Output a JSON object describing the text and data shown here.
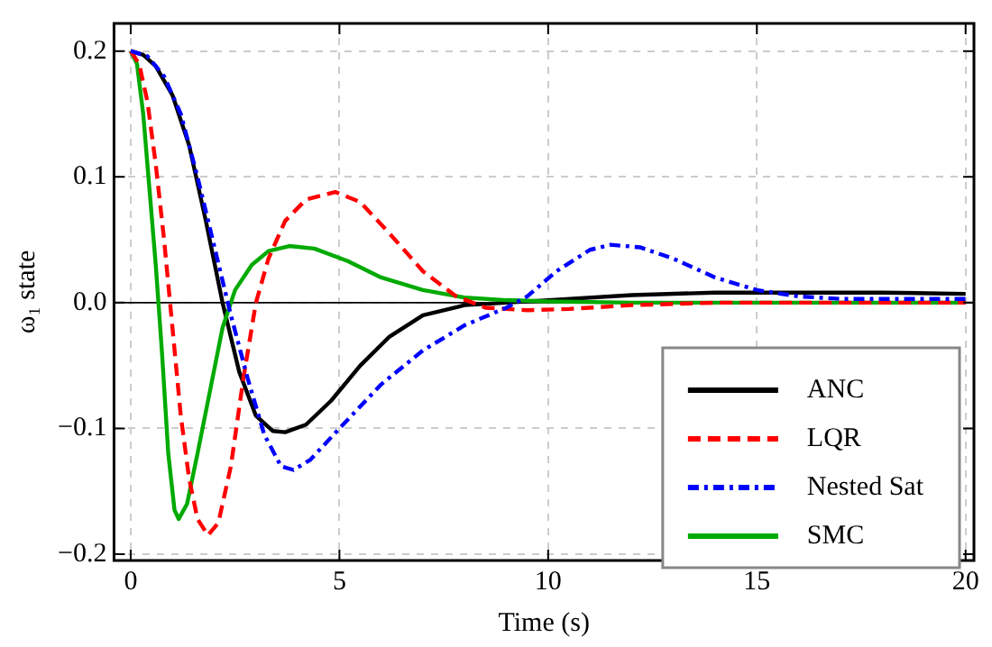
{
  "chart_data": {
    "type": "line",
    "xlabel": "Time (s)",
    "ylabel": "ω₁ state",
    "xlim": [
      -0.4,
      20.2
    ],
    "ylim": [
      -0.205,
      0.222
    ],
    "xticks": [
      0,
      5,
      10,
      15,
      20
    ],
    "yticks": [
      {
        "value": -0.2,
        "label": "−0.2"
      },
      {
        "value": -0.1,
        "label": "−0.1"
      },
      {
        "value": 0,
        "label": "0.0"
      },
      0.1,
      0.2
    ],
    "grid": true,
    "legend": "bottom right",
    "marker": "none",
    "ref_lines": [
      {
        "axis": "y",
        "value": 0,
        "color": "#000000"
      }
    ],
    "series": [
      {
        "name": "ANC",
        "color": "#000000",
        "line_style": "solid",
        "x": [
          0,
          0.3,
          0.6,
          1,
          1.4,
          1.8,
          2.2,
          2.6,
          3,
          3.4,
          3.7,
          4.2,
          4.8,
          5.5,
          6.2,
          7,
          8,
          9,
          10,
          12,
          14,
          16,
          18,
          20
        ],
        "values": [
          0.2,
          0.197,
          0.188,
          0.165,
          0.125,
          0.065,
          0,
          -0.055,
          -0.09,
          -0.102,
          -0.103,
          -0.097,
          -0.078,
          -0.05,
          -0.027,
          -0.01,
          -0.002,
          0,
          0.002,
          0.006,
          0.008,
          0.008,
          0.008,
          0.007
        ]
      },
      {
        "name": "LQR",
        "color": "#ff0000",
        "line_style": "dashed",
        "x": [
          0,
          0.2,
          0.4,
          0.6,
          0.8,
          1,
          1.2,
          1.4,
          1.6,
          1.85,
          2.1,
          2.4,
          2.7,
          3,
          3.3,
          3.7,
          4.2,
          4.9,
          5.5,
          6.2,
          7,
          7.8,
          8.5,
          9.5,
          10.5,
          12,
          14,
          20
        ],
        "values": [
          0.2,
          0.19,
          0.16,
          0.11,
          0.05,
          -0.02,
          -0.09,
          -0.14,
          -0.172,
          -0.185,
          -0.175,
          -0.13,
          -0.06,
          0,
          0.035,
          0.065,
          0.082,
          0.088,
          0.08,
          0.055,
          0.025,
          0.005,
          -0.004,
          -0.006,
          -0.005,
          -0.002,
          0,
          0
        ]
      },
      {
        "name": "Nested Sat",
        "color": "#0000ff",
        "line_style": "dashdot",
        "x": [
          0,
          0.4,
          0.8,
          1.2,
          1.6,
          2,
          2.4,
          2.8,
          3.2,
          3.6,
          3.9,
          4.3,
          5,
          6,
          7,
          8,
          9,
          9.5,
          10.2,
          11,
          11.5,
          12.2,
          13,
          14,
          15,
          16,
          17,
          18,
          20
        ],
        "values": [
          0.2,
          0.196,
          0.18,
          0.15,
          0.1,
          0.045,
          -0.01,
          -0.06,
          -0.105,
          -0.13,
          -0.133,
          -0.125,
          -0.1,
          -0.065,
          -0.038,
          -0.018,
          -0.004,
          0.005,
          0.025,
          0.042,
          0.046,
          0.044,
          0.035,
          0.02,
          0.01,
          0.005,
          0.003,
          0.003,
          0.003
        ]
      },
      {
        "name": "SMC",
        "color": "#00aa00",
        "line_style": "solid",
        "x": [
          0,
          0.15,
          0.3,
          0.45,
          0.6,
          0.75,
          0.9,
          1.05,
          1.15,
          1.35,
          1.6,
          1.9,
          2.2,
          2.5,
          2.9,
          3.3,
          3.8,
          4.4,
          5.2,
          6,
          7,
          8,
          9,
          10,
          12,
          20
        ],
        "values": [
          0.2,
          0.19,
          0.15,
          0.09,
          0.03,
          -0.04,
          -0.12,
          -0.165,
          -0.172,
          -0.16,
          -0.12,
          -0.07,
          -0.02,
          0.01,
          0.03,
          0.041,
          0.045,
          0.043,
          0.033,
          0.02,
          0.01,
          0.004,
          0.002,
          0.001,
          0,
          0
        ]
      }
    ]
  }
}
